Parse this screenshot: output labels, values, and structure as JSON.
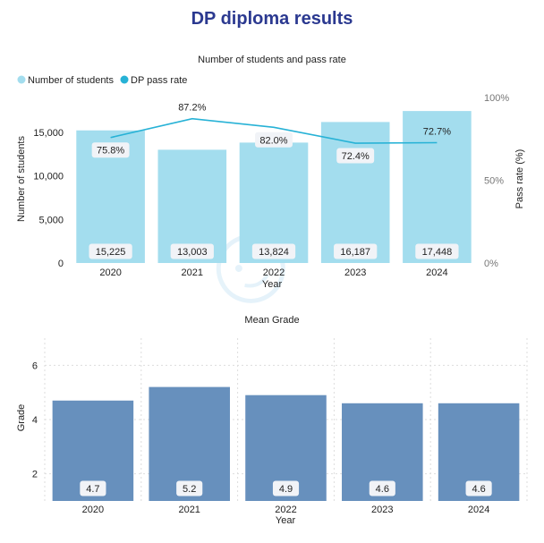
{
  "title": "DP diploma results",
  "colors": {
    "title": "#2b3990",
    "students_bar": "#a3ddee",
    "pass_line": "#27b2d6",
    "grade_bar": "#6790bd",
    "label_box": "#f1f3f7",
    "grid": "#dddddd"
  },
  "chart_data": [
    {
      "type": "bar",
      "title": "Number of students and pass rate",
      "categories": [
        "2020",
        "2021",
        "2022",
        "2023",
        "2024"
      ],
      "xlabel": "Year",
      "ylabel": "Number of students",
      "y2label": "Pass rate (%)",
      "ylim": [
        0,
        19000
      ],
      "y2lim": [
        0,
        100
      ],
      "yticks": [
        "0",
        "5,000",
        "10,000",
        "15,000"
      ],
      "yticks_values": [
        0,
        5000,
        10000,
        15000
      ],
      "y2ticks": [
        "0%",
        "50%",
        "100%"
      ],
      "y2ticks_values": [
        0,
        50,
        100
      ],
      "legend": [
        "Number of students",
        "DP pass rate"
      ],
      "legend_position": "top-left",
      "series": [
        {
          "name": "Number of students",
          "type": "bar",
          "values": [
            15225,
            13003,
            13824,
            16187,
            17448
          ],
          "labels": [
            "15,225",
            "13,003",
            "13,824",
            "16,187",
            "17,448"
          ]
        },
        {
          "name": "DP pass rate",
          "type": "line",
          "axis": "right",
          "values": [
            75.8,
            87.2,
            82.0,
            72.4,
            72.7
          ],
          "labels": [
            "75.8%",
            "87.2%",
            "82.0%",
            "72.4%",
            "72.7%"
          ]
        }
      ]
    },
    {
      "type": "bar",
      "title": "Mean Grade",
      "categories": [
        "2020",
        "2021",
        "2022",
        "2023",
        "2024"
      ],
      "xlabel": "Year",
      "ylabel": "Grade",
      "ylim": [
        1,
        7
      ],
      "yticks": [
        "2",
        "4",
        "6"
      ],
      "yticks_values": [
        2,
        4,
        6
      ],
      "grid": true,
      "series": [
        {
          "name": "Mean Grade",
          "values": [
            4.7,
            5.2,
            4.9,
            4.6,
            4.6
          ],
          "labels": [
            "4.7",
            "5.2",
            "4.9",
            "4.6",
            "4.6"
          ]
        }
      ]
    }
  ]
}
